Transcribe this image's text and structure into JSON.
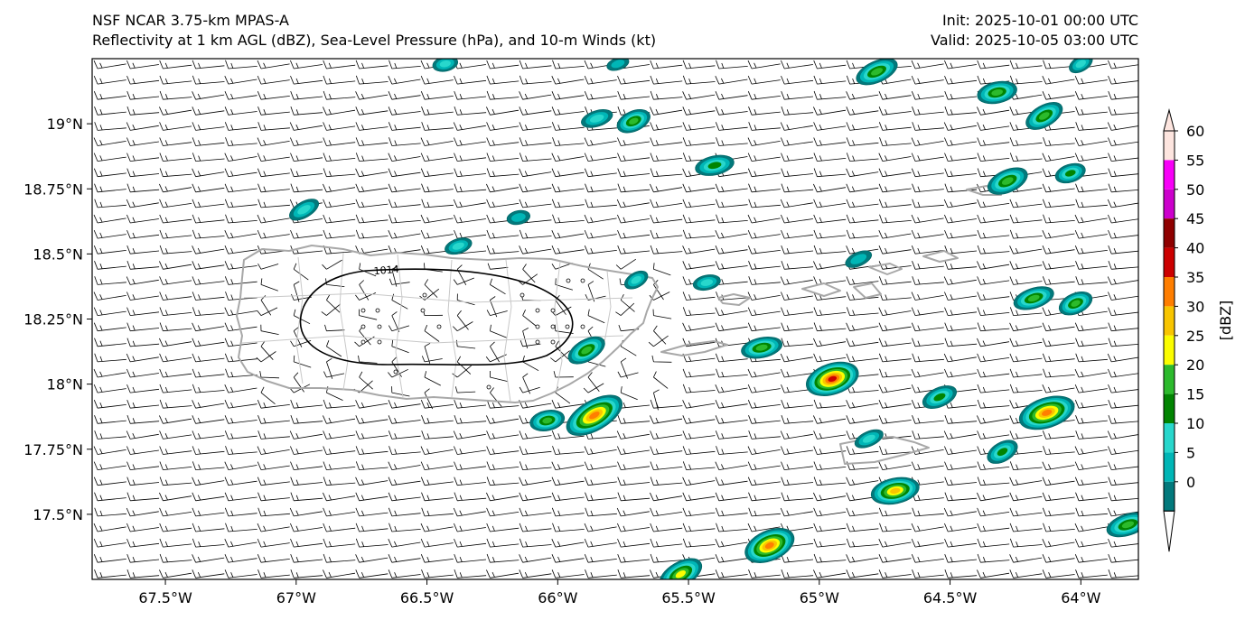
{
  "header": {
    "title_line1": "NSF NCAR 3.75-km MPAS-A",
    "title_line2": "Reflectivity at 1 km AGL (dBZ), Sea-Level Pressure (hPa), and 10-m Winds (kt)",
    "init": "Init: 2025-10-01 00:00 UTC",
    "valid": "Valid: 2025-10-05 03:00 UTC"
  },
  "map": {
    "lon_range": [
      -67.78,
      -63.78
    ],
    "lat_range": [
      17.25,
      19.25
    ],
    "lon_ticks": [
      {
        "value": -67.5,
        "label": "67.5°W"
      },
      {
        "value": -67.0,
        "label": "67°W"
      },
      {
        "value": -66.5,
        "label": "66.5°W"
      },
      {
        "value": -66.0,
        "label": "66°W"
      },
      {
        "value": -65.5,
        "label": "65.5°W"
      },
      {
        "value": -65.0,
        "label": "65°W"
      },
      {
        "value": -64.5,
        "label": "64.5°W"
      },
      {
        "value": -64.0,
        "label": "64°W"
      }
    ],
    "lat_ticks": [
      {
        "value": 19.0,
        "label": "19°N"
      },
      {
        "value": 18.75,
        "label": "18.75°N"
      },
      {
        "value": 18.5,
        "label": "18.5°N"
      },
      {
        "value": 18.25,
        "label": "18.25°N"
      },
      {
        "value": 18.0,
        "label": "18°N"
      },
      {
        "value": 17.75,
        "label": "17.75°N"
      },
      {
        "value": 17.5,
        "label": "17.5°N"
      }
    ],
    "isobar_label": "1014",
    "storm_cells": [
      {
        "lon": -66.43,
        "lat": 19.23,
        "dbz": 10
      },
      {
        "lon": -65.77,
        "lat": 19.23,
        "dbz": 5
      },
      {
        "lon": -64.78,
        "lat": 19.2,
        "dbz": 22
      },
      {
        "lon": -64.0,
        "lat": 19.23,
        "dbz": 10
      },
      {
        "lon": -64.32,
        "lat": 19.12,
        "dbz": 22
      },
      {
        "lon": -65.85,
        "lat": 19.02,
        "dbz": 12
      },
      {
        "lon": -65.71,
        "lat": 19.01,
        "dbz": 20
      },
      {
        "lon": -64.14,
        "lat": 19.03,
        "dbz": 22
      },
      {
        "lon": -65.4,
        "lat": 18.84,
        "dbz": 18
      },
      {
        "lon": -64.04,
        "lat": 18.81,
        "dbz": 16
      },
      {
        "lon": -64.28,
        "lat": 18.78,
        "dbz": 24
      },
      {
        "lon": -66.97,
        "lat": 18.67,
        "dbz": 12
      },
      {
        "lon": -66.15,
        "lat": 18.64,
        "dbz": 8
      },
      {
        "lon": -66.38,
        "lat": 18.53,
        "dbz": 10
      },
      {
        "lon": -64.85,
        "lat": 18.48,
        "dbz": 8
      },
      {
        "lon": -65.7,
        "lat": 18.4,
        "dbz": 10
      },
      {
        "lon": -65.43,
        "lat": 18.39,
        "dbz": 10
      },
      {
        "lon": -64.18,
        "lat": 18.33,
        "dbz": 20
      },
      {
        "lon": -64.02,
        "lat": 18.31,
        "dbz": 20
      },
      {
        "lon": -65.89,
        "lat": 18.13,
        "dbz": 22
      },
      {
        "lon": -65.22,
        "lat": 18.14,
        "dbz": 20
      },
      {
        "lon": -64.95,
        "lat": 18.02,
        "dbz": 40
      },
      {
        "lon": -64.54,
        "lat": 17.95,
        "dbz": 18
      },
      {
        "lon": -65.86,
        "lat": 17.88,
        "dbz": 38
      },
      {
        "lon": -66.04,
        "lat": 17.86,
        "dbz": 20
      },
      {
        "lon": -64.13,
        "lat": 17.89,
        "dbz": 38
      },
      {
        "lon": -64.81,
        "lat": 17.79,
        "dbz": 10
      },
      {
        "lon": -64.3,
        "lat": 17.74,
        "dbz": 18
      },
      {
        "lon": -64.71,
        "lat": 17.59,
        "dbz": 30
      },
      {
        "lon": -63.82,
        "lat": 17.46,
        "dbz": 22
      },
      {
        "lon": -65.19,
        "lat": 17.38,
        "dbz": 38
      },
      {
        "lon": -65.53,
        "lat": 17.27,
        "dbz": 28
      }
    ]
  },
  "colorbar": {
    "label": "[dBZ]",
    "levels": [
      0,
      5,
      10,
      15,
      20,
      25,
      30,
      35,
      40,
      45,
      50,
      55,
      60
    ],
    "tick_labels": [
      "0",
      "5",
      "10",
      "15",
      "20",
      "25",
      "30",
      "35",
      "40",
      "45",
      "50",
      "55",
      "60"
    ],
    "colors": [
      "#02797c",
      "#00b6b6",
      "#28d7cc",
      "#018401",
      "#2cba2c",
      "#fbfd00",
      "#f8c500",
      "#ff7e00",
      "#cc0000",
      "#8f0000",
      "#cc00cc",
      "#f800f8",
      "#fde5df"
    ]
  }
}
